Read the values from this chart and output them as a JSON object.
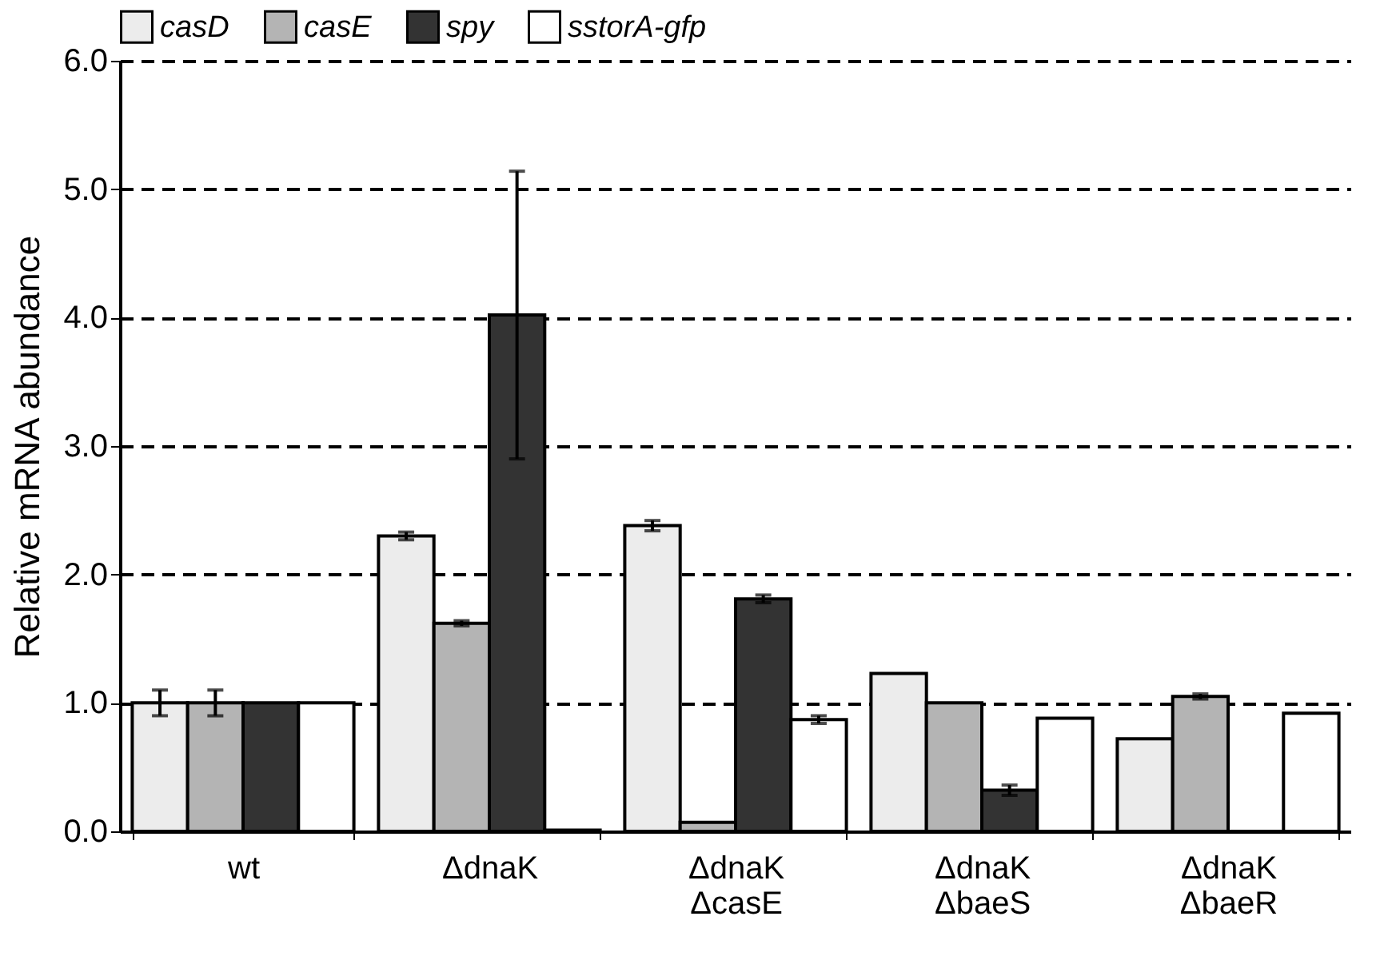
{
  "chart_data": {
    "type": "bar",
    "ylabel": "Relative mRNA abundance",
    "categories": [
      "wt",
      "ΔdnaK",
      "ΔdnaK ΔcasE",
      "ΔdnaK ΔbaeS",
      "ΔdnaK ΔbaeR"
    ],
    "series": [
      {
        "name": "casD",
        "color": "#ececec",
        "values": [
          1.0,
          2.3,
          2.38,
          1.23,
          0.72
        ],
        "errors": [
          0.1,
          0.03,
          0.04,
          null,
          null
        ]
      },
      {
        "name": "casE",
        "color": "#b4b4b4",
        "values": [
          1.0,
          1.62,
          0.07,
          1.0,
          1.05
        ],
        "errors": [
          0.1,
          0.02,
          null,
          null,
          0.02
        ]
      },
      {
        "name": "spy",
        "color": "#333333",
        "values": [
          1.0,
          4.02,
          1.81,
          0.32,
          0
        ],
        "errors": [
          null,
          1.12,
          0.03,
          0.04,
          null
        ]
      },
      {
        "name": "sstorA-gfp",
        "color": "#ffffff",
        "values": [
          1.0,
          0.01,
          0.87,
          0.88,
          0.92
        ],
        "errors": [
          null,
          null,
          0.03,
          null,
          null
        ]
      }
    ],
    "ylim": [
      0,
      6
    ],
    "yticks": [
      {
        "value": 0,
        "label": "0.0"
      },
      {
        "value": 1,
        "label": "1.0"
      },
      {
        "value": 2,
        "label": "2.0"
      },
      {
        "value": 3,
        "label": "3.0"
      },
      {
        "value": 4,
        "label": "4.0"
      },
      {
        "value": 5,
        "label": "5.0"
      },
      {
        "value": 6,
        "label": "6.0"
      }
    ],
    "grid": "y",
    "legend": "top"
  }
}
